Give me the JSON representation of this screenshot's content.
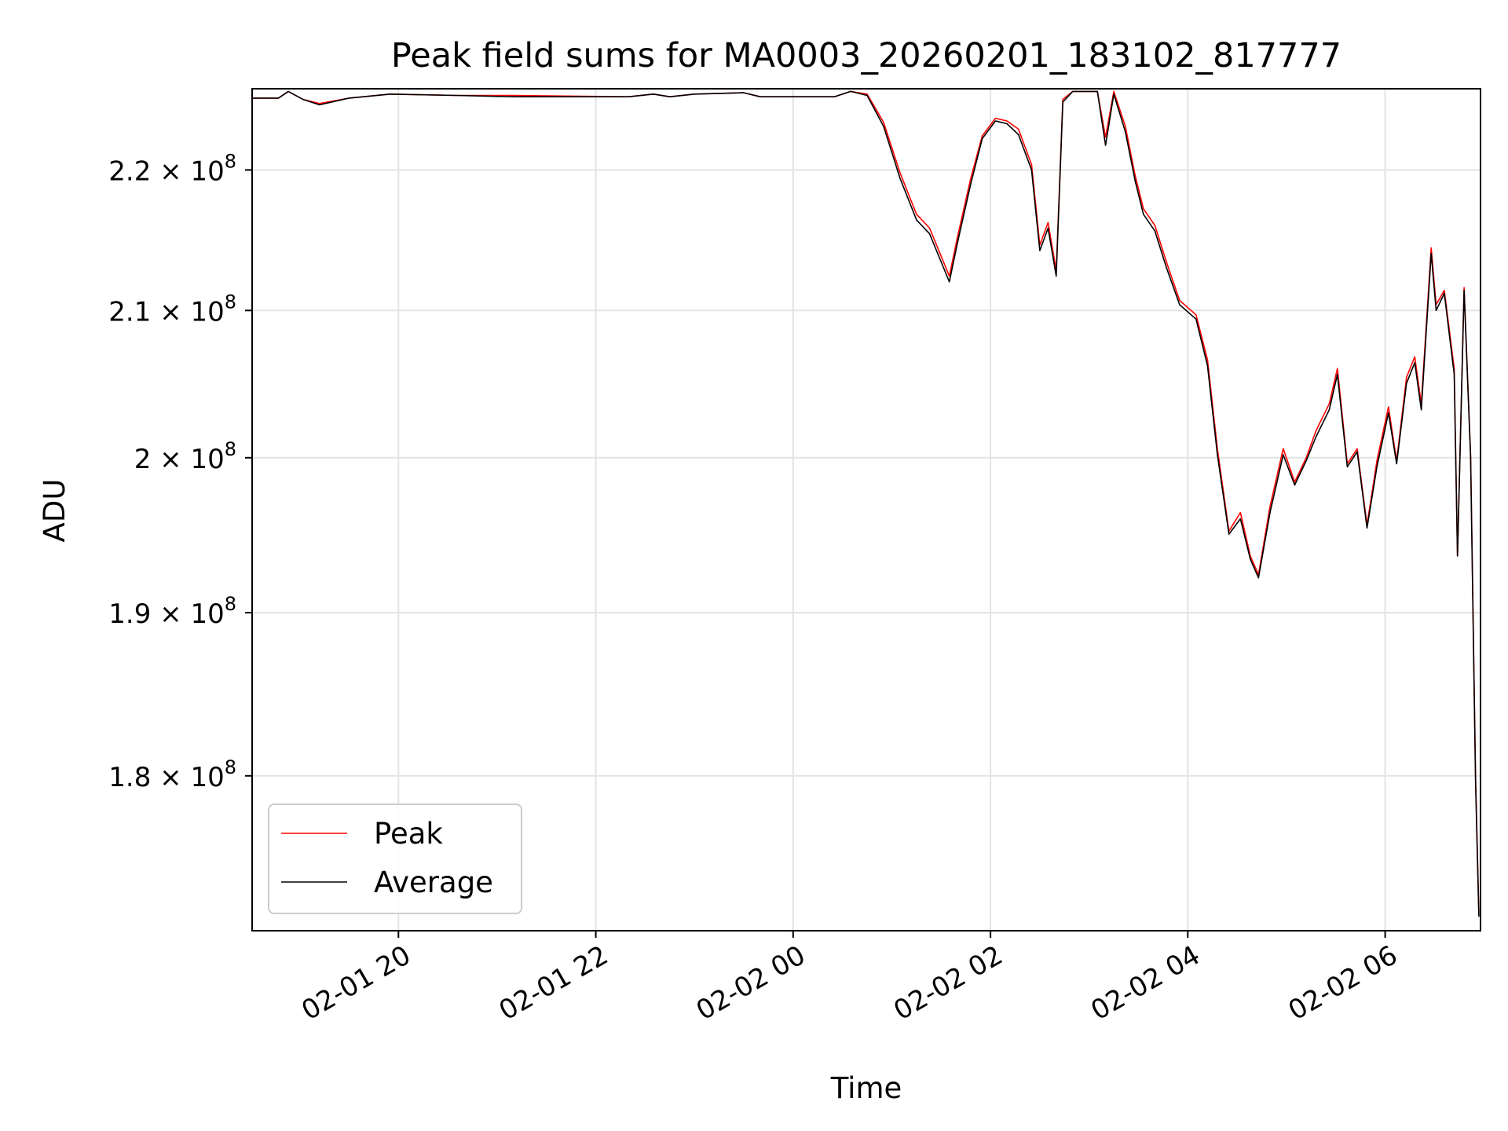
{
  "chart_data": {
    "type": "line",
    "title": "Peak field sums for MA0003_20260201_183102_817777",
    "xlabel": "Time",
    "ylabel": "ADU",
    "x_axis": {
      "kind": "datetime",
      "xlim": [
        "2026-02-01 18:31",
        "2026-02-02 06:58"
      ],
      "ticks": [
        "2026-02-01 20:00",
        "2026-02-01 22:00",
        "2026-02-02 00:00",
        "2026-02-02 02:00",
        "2026-02-02 04:00",
        "2026-02-02 06:00"
      ],
      "tick_labels": [
        "02-01 20",
        "02-01 22",
        "02-02 00",
        "02-02 02",
        "02-02 04",
        "02-02 06"
      ],
      "tick_rotation": 30
    },
    "y_axis": {
      "scale": "log",
      "ylim": [
        171000000,
        226000000
      ],
      "ticks": [
        180000000,
        190000000,
        200000000,
        210000000,
        220000000
      ],
      "tick_labels": [
        {
          "mantissa": "1.8",
          "times": "×",
          "base": "10",
          "exp": "8"
        },
        {
          "mantissa": "1.9",
          "times": "×",
          "base": "10",
          "exp": "8"
        },
        {
          "mantissa": "2",
          "times": "×",
          "base": "10",
          "exp": "8"
        },
        {
          "mantissa": "2.1",
          "times": "×",
          "base": "10",
          "exp": "8"
        },
        {
          "mantissa": "2.2",
          "times": "×",
          "base": "10",
          "exp": "8"
        }
      ]
    },
    "grid": true,
    "legend": {
      "placement": "lower-left",
      "entries": [
        {
          "label": "Peak",
          "color": "#ff0000"
        },
        {
          "label": "Average",
          "color": "#000000"
        }
      ]
    },
    "series": [
      {
        "name": "Peak",
        "color": "#ff0000",
        "points": [
          [
            "2026-02-01 18:31",
            225300000
          ],
          [
            "2026-02-01 18:47",
            225300000
          ],
          [
            "2026-02-01 18:53",
            225800000
          ],
          [
            "2026-02-01 19:02",
            225200000
          ],
          [
            "2026-02-01 19:12",
            224900000
          ],
          [
            "2026-02-01 19:30",
            225300000
          ],
          [
            "2026-02-01 19:55",
            225600000
          ],
          [
            "2026-02-01 20:35",
            225500000
          ],
          [
            "2026-02-01 21:10",
            225500000
          ],
          [
            "2026-02-01 22:20",
            225400000
          ],
          [
            "2026-02-01 22:35",
            225600000
          ],
          [
            "2026-02-01 22:45",
            225400000
          ],
          [
            "2026-02-01 23:00",
            225600000
          ],
          [
            "2026-02-01 23:30",
            225700000
          ],
          [
            "2026-02-01 23:40",
            225400000
          ],
          [
            "2026-02-02 00:25",
            225400000
          ],
          [
            "2026-02-02 00:35",
            225800000
          ],
          [
            "2026-02-02 00:45",
            225600000
          ],
          [
            "2026-02-02 00:55",
            223500000
          ],
          [
            "2026-02-02 01:05",
            219800000
          ],
          [
            "2026-02-02 01:15",
            216800000
          ],
          [
            "2026-02-02 01:23",
            215800000
          ],
          [
            "2026-02-02 01:30",
            213800000
          ],
          [
            "2026-02-02 01:35",
            212400000
          ],
          [
            "2026-02-02 01:40",
            215200000
          ],
          [
            "2026-02-02 01:48",
            219400000
          ],
          [
            "2026-02-02 01:55",
            222500000
          ],
          [
            "2026-02-02 02:03",
            223800000
          ],
          [
            "2026-02-02 02:10",
            223600000
          ],
          [
            "2026-02-02 02:17",
            223000000
          ],
          [
            "2026-02-02 02:25",
            220400000
          ],
          [
            "2026-02-02 02:30",
            214600000
          ],
          [
            "2026-02-02 02:35",
            216200000
          ],
          [
            "2026-02-02 02:40",
            212800000
          ],
          [
            "2026-02-02 02:44",
            225200000
          ],
          [
            "2026-02-02 02:50",
            225800000
          ],
          [
            "2026-02-02 03:05",
            225800000
          ],
          [
            "2026-02-02 03:10",
            222400000
          ],
          [
            "2026-02-02 03:15",
            225800000
          ],
          [
            "2026-02-02 03:22",
            223200000
          ],
          [
            "2026-02-02 03:28",
            219600000
          ],
          [
            "2026-02-02 03:33",
            217200000
          ],
          [
            "2026-02-02 03:40",
            216000000
          ],
          [
            "2026-02-02 03:47",
            213400000
          ],
          [
            "2026-02-02 03:55",
            210700000
          ],
          [
            "2026-02-02 04:05",
            209700000
          ],
          [
            "2026-02-02 04:12",
            206600000
          ],
          [
            "2026-02-02 04:18",
            200600000
          ],
          [
            "2026-02-02 04:25",
            195200000
          ],
          [
            "2026-02-02 04:32",
            196400000
          ],
          [
            "2026-02-02 04:38",
            193600000
          ],
          [
            "2026-02-02 04:43",
            192400000
          ],
          [
            "2026-02-02 04:50",
            196800000
          ],
          [
            "2026-02-02 04:58",
            200600000
          ],
          [
            "2026-02-02 05:05",
            198400000
          ],
          [
            "2026-02-02 05:12",
            200000000
          ],
          [
            "2026-02-02 05:18",
            201800000
          ],
          [
            "2026-02-02 05:26",
            203600000
          ],
          [
            "2026-02-02 05:31",
            206000000
          ],
          [
            "2026-02-02 05:37",
            199600000
          ],
          [
            "2026-02-02 05:43",
            200600000
          ],
          [
            "2026-02-02 05:49",
            195600000
          ],
          [
            "2026-02-02 05:55",
            199800000
          ],
          [
            "2026-02-02 06:02",
            203400000
          ],
          [
            "2026-02-02 06:07",
            199800000
          ],
          [
            "2026-02-02 06:13",
            205400000
          ],
          [
            "2026-02-02 06:18",
            206800000
          ],
          [
            "2026-02-02 06:22",
            203600000
          ],
          [
            "2026-02-02 06:28",
            214400000
          ],
          [
            "2026-02-02 06:31",
            210400000
          ],
          [
            "2026-02-02 06:36",
            211400000
          ],
          [
            "2026-02-02 06:42",
            206000000
          ],
          [
            "2026-02-02 06:44",
            193600000
          ],
          [
            "2026-02-02 06:48",
            211600000
          ],
          [
            "2026-02-02 06:52",
            200200000
          ],
          [
            "2026-02-02 06:55",
            180000000
          ],
          [
            "2026-02-02 06:57",
            172000000
          ]
        ]
      },
      {
        "name": "Average",
        "color": "#000000",
        "points": [
          [
            "2026-02-01 18:31",
            225300000
          ],
          [
            "2026-02-01 18:47",
            225300000
          ],
          [
            "2026-02-01 18:53",
            225800000
          ],
          [
            "2026-02-01 19:02",
            225200000
          ],
          [
            "2026-02-01 19:12",
            224800000
          ],
          [
            "2026-02-01 19:30",
            225300000
          ],
          [
            "2026-02-01 19:55",
            225600000
          ],
          [
            "2026-02-01 20:35",
            225500000
          ],
          [
            "2026-02-01 21:10",
            225400000
          ],
          [
            "2026-02-01 22:20",
            225400000
          ],
          [
            "2026-02-01 22:35",
            225600000
          ],
          [
            "2026-02-01 22:45",
            225400000
          ],
          [
            "2026-02-01 23:00",
            225600000
          ],
          [
            "2026-02-01 23:30",
            225700000
          ],
          [
            "2026-02-01 23:40",
            225400000
          ],
          [
            "2026-02-02 00:25",
            225400000
          ],
          [
            "2026-02-02 00:35",
            225800000
          ],
          [
            "2026-02-02 00:45",
            225500000
          ],
          [
            "2026-02-02 00:55",
            223200000
          ],
          [
            "2026-02-02 01:05",
            219400000
          ],
          [
            "2026-02-02 01:15",
            216400000
          ],
          [
            "2026-02-02 01:23",
            215400000
          ],
          [
            "2026-02-02 01:30",
            213400000
          ],
          [
            "2026-02-02 01:35",
            212000000
          ],
          [
            "2026-02-02 01:40",
            214800000
          ],
          [
            "2026-02-02 01:48",
            219000000
          ],
          [
            "2026-02-02 01:55",
            222300000
          ],
          [
            "2026-02-02 02:03",
            223600000
          ],
          [
            "2026-02-02 02:10",
            223400000
          ],
          [
            "2026-02-02 02:17",
            222600000
          ],
          [
            "2026-02-02 02:25",
            220000000
          ],
          [
            "2026-02-02 02:30",
            214200000
          ],
          [
            "2026-02-02 02:35",
            215800000
          ],
          [
            "2026-02-02 02:40",
            212400000
          ],
          [
            "2026-02-02 02:44",
            225000000
          ],
          [
            "2026-02-02 02:50",
            225800000
          ],
          [
            "2026-02-02 03:05",
            225800000
          ],
          [
            "2026-02-02 03:10",
            221800000
          ],
          [
            "2026-02-02 03:15",
            225600000
          ],
          [
            "2026-02-02 03:22",
            222800000
          ],
          [
            "2026-02-02 03:28",
            219200000
          ],
          [
            "2026-02-02 03:33",
            216800000
          ],
          [
            "2026-02-02 03:40",
            215600000
          ],
          [
            "2026-02-02 03:47",
            213000000
          ],
          [
            "2026-02-02 03:55",
            210400000
          ],
          [
            "2026-02-02 04:05",
            209400000
          ],
          [
            "2026-02-02 04:12",
            206200000
          ],
          [
            "2026-02-02 04:18",
            200200000
          ],
          [
            "2026-02-02 04:25",
            195000000
          ],
          [
            "2026-02-02 04:32",
            196000000
          ],
          [
            "2026-02-02 04:38",
            193400000
          ],
          [
            "2026-02-02 04:43",
            192200000
          ],
          [
            "2026-02-02 04:50",
            196400000
          ],
          [
            "2026-02-02 04:58",
            200200000
          ],
          [
            "2026-02-02 05:05",
            198200000
          ],
          [
            "2026-02-02 05:12",
            199800000
          ],
          [
            "2026-02-02 05:18",
            201400000
          ],
          [
            "2026-02-02 05:26",
            203200000
          ],
          [
            "2026-02-02 05:31",
            205600000
          ],
          [
            "2026-02-02 05:37",
            199400000
          ],
          [
            "2026-02-02 05:43",
            200400000
          ],
          [
            "2026-02-02 05:49",
            195400000
          ],
          [
            "2026-02-02 05:55",
            199400000
          ],
          [
            "2026-02-02 06:02",
            203000000
          ],
          [
            "2026-02-02 06:07",
            199600000
          ],
          [
            "2026-02-02 06:13",
            205000000
          ],
          [
            "2026-02-02 06:18",
            206400000
          ],
          [
            "2026-02-02 06:22",
            203200000
          ],
          [
            "2026-02-02 06:28",
            214000000
          ],
          [
            "2026-02-02 06:31",
            210000000
          ],
          [
            "2026-02-02 06:36",
            211200000
          ],
          [
            "2026-02-02 06:42",
            205600000
          ],
          [
            "2026-02-02 06:44",
            193600000
          ],
          [
            "2026-02-02 06:48",
            211400000
          ],
          [
            "2026-02-02 06:52",
            200000000
          ],
          [
            "2026-02-02 06:55",
            179600000
          ],
          [
            "2026-02-02 06:57",
            171800000
          ]
        ]
      }
    ]
  }
}
